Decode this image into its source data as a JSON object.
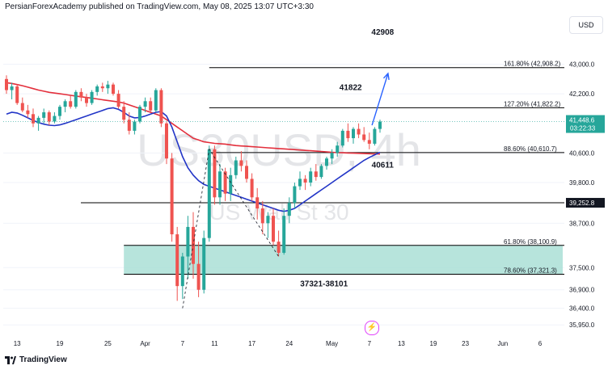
{
  "header": {
    "published_by": "PersianForexAcademy published on TradingView.com, May 08, 2025 13:07 UTC+3:30"
  },
  "currency_button": "USD",
  "watermark": {
    "symbol": "US30USD, 4h",
    "name": "US Wall St 30"
  },
  "footer": {
    "brand": "TradingView"
  },
  "colors": {
    "bull": "#26a69a",
    "bear": "#ef5350",
    "ma_fast": "#2235c7",
    "ma_slow": "#e32f3c",
    "zone": "#a5ddd3",
    "projection": "#2962ff",
    "price_tag": "#26a69a",
    "line": "#000000"
  },
  "chart_data": {
    "type": "line",
    "title": "US30USD, 4h",
    "ylabel": "USD",
    "ylim": [
      35780,
      44300
    ],
    "price_ticks": [
      "43,000.0",
      "42,200.0",
      "40,600.0",
      "39,800.0",
      "38,700.0",
      "37,500.0",
      "36,900.0",
      "36,400.0",
      "35,950.0"
    ],
    "price_tick_values": [
      43000,
      42200,
      40600,
      39800,
      38700,
      37500,
      36900,
      36400,
      35950
    ],
    "date_ticks": [
      "13",
      "19",
      "25",
      "Apr",
      "7",
      "11",
      "17",
      "24",
      "May",
      "7",
      "13",
      "19",
      "23",
      "Jun",
      "6"
    ],
    "date_tick_index": [
      2,
      10,
      19,
      26,
      33,
      39,
      46,
      53,
      61,
      68,
      74,
      80,
      86,
      93,
      100
    ],
    "last_price": {
      "value": "41,448.6",
      "countdown": "03:22:33",
      "y": 41448.6
    },
    "horizontal_line": {
      "value": 39252.8,
      "label": "39,252.8"
    },
    "fib_levels": [
      {
        "label": "161.80% (42,908.2)",
        "value": 42908.2,
        "x_from": 38
      },
      {
        "label": "127.20% (41,822.2)",
        "value": 41822.2,
        "x_from": 38
      },
      {
        "label": "88.60% (40,610.7)",
        "value": 40610.7,
        "x_from": 38
      },
      {
        "label": "61.80% (38,100.9)",
        "value": 38100.9,
        "x_from": 22
      },
      {
        "label": "78.60% (37,321.3)",
        "value": 37321.3,
        "x_from": 22
      }
    ],
    "annotations": [
      {
        "text": "42908",
        "x": 70.5,
        "y": 43800
      },
      {
        "text": "41822",
        "x": 64.5,
        "y": 42300
      },
      {
        "text": "40611",
        "x": 70.5,
        "y": 40200
      },
      {
        "text": "37321-38101",
        "x": 59.5,
        "y": 36990
      }
    ],
    "demand_zone": {
      "from": 37321.3,
      "to": 38100.9,
      "x_from": 22,
      "x_to": 100
    },
    "projection_arrow": {
      "from": [
        68.5,
        41350
      ],
      "to": [
        71.5,
        42750
      ]
    },
    "candles": [
      [
        42600,
        42700,
        42200,
        42300
      ],
      [
        42300,
        42500,
        42050,
        42400
      ],
      [
        42400,
        42450,
        41900,
        41950
      ],
      [
        41950,
        42100,
        41700,
        41750
      ],
      [
        41750,
        41900,
        41550,
        41650
      ],
      [
        41650,
        41800,
        41300,
        41400
      ],
      [
        41400,
        41600,
        41200,
        41550
      ],
      [
        41550,
        41800,
        41400,
        41700
      ],
      [
        41700,
        41750,
        41350,
        41450
      ],
      [
        41450,
        41700,
        41400,
        41600
      ],
      [
        41600,
        41900,
        41500,
        41850
      ],
      [
        41850,
        42050,
        41700,
        42000
      ],
      [
        42000,
        42150,
        41800,
        41850
      ],
      [
        41850,
        42300,
        41800,
        42250
      ],
      [
        42250,
        42350,
        42000,
        42100
      ],
      [
        42100,
        42200,
        41850,
        41950
      ],
      [
        41950,
        42300,
        41900,
        42250
      ],
      [
        42250,
        42450,
        42150,
        42400
      ],
      [
        42400,
        42500,
        42250,
        42350
      ],
      [
        42350,
        42550,
        42200,
        42450
      ],
      [
        42450,
        42500,
        42150,
        42200
      ],
      [
        42200,
        42300,
        41800,
        41850
      ],
      [
        41850,
        42000,
        41400,
        41500
      ],
      [
        41500,
        41700,
        41100,
        41200
      ],
      [
        41200,
        41500,
        41100,
        41450
      ],
      [
        41450,
        41900,
        41400,
        41850
      ],
      [
        41850,
        42100,
        41700,
        42000
      ],
      [
        42000,
        42100,
        41700,
        41750
      ],
      [
        41750,
        42350,
        41700,
        42300
      ],
      [
        42300,
        42350,
        41300,
        41400
      ],
      [
        41400,
        41450,
        40300,
        40450
      ],
      [
        40450,
        40600,
        38200,
        38400
      ],
      [
        38400,
        38600,
        36600,
        37000
      ],
      [
        37000,
        37900,
        36650,
        37800
      ],
      [
        37800,
        38900,
        37200,
        38600
      ],
      [
        38600,
        39000,
        37200,
        37600
      ],
      [
        37600,
        38200,
        36700,
        36900
      ],
      [
        36900,
        38500,
        36800,
        38300
      ],
      [
        38300,
        40800,
        38200,
        40700
      ],
      [
        40700,
        40800,
        39200,
        39400
      ],
      [
        39400,
        40300,
        39200,
        40100
      ],
      [
        40100,
        40200,
        39300,
        39500
      ],
      [
        39500,
        40200,
        39300,
        40000
      ],
      [
        40000,
        40500,
        39900,
        40400
      ],
      [
        40400,
        40650,
        40100,
        40250
      ],
      [
        40250,
        40400,
        39800,
        39900
      ],
      [
        39900,
        40050,
        39300,
        39400
      ],
      [
        39400,
        39650,
        38800,
        39100
      ],
      [
        39100,
        39300,
        38400,
        38700
      ],
      [
        38700,
        39000,
        38300,
        38900
      ],
      [
        38900,
        39100,
        38100,
        38200
      ],
      [
        38200,
        38500,
        37800,
        37900
      ],
      [
        37900,
        39100,
        37850,
        38900
      ],
      [
        38900,
        39400,
        38700,
        39250
      ],
      [
        39250,
        39800,
        39100,
        39700
      ],
      [
        39700,
        40100,
        39600,
        39900
      ],
      [
        39900,
        40000,
        39600,
        39800
      ],
      [
        39800,
        40200,
        39700,
        40100
      ],
      [
        40100,
        40300,
        39850,
        39950
      ],
      [
        39950,
        40300,
        39900,
        40250
      ],
      [
        40250,
        40500,
        40150,
        40450
      ],
      [
        40450,
        40700,
        40300,
        40600
      ],
      [
        40600,
        40900,
        40500,
        40800
      ],
      [
        40800,
        41250,
        40750,
        41200
      ],
      [
        41200,
        41400,
        40900,
        41000
      ],
      [
        41000,
        41300,
        40850,
        41250
      ],
      [
        41250,
        41400,
        41000,
        41100
      ],
      [
        41100,
        41300,
        40900,
        40950
      ],
      [
        40950,
        41150,
        40700,
        40850
      ],
      [
        40850,
        41300,
        40800,
        41250
      ],
      [
        41250,
        41500,
        41150,
        41448.6
      ]
    ],
    "ma_fast": [
      41650,
      41700,
      41680,
      41620,
      41550,
      41480,
      41420,
      41380,
      41350,
      41340,
      41360,
      41400,
      41450,
      41500,
      41550,
      41600,
      41650,
      41700,
      41750,
      41800,
      41820,
      41780,
      41700,
      41600,
      41550,
      41560,
      41600,
      41650,
      41700,
      41720,
      41600,
      41300,
      40900,
      40500,
      40200,
      40000,
      39850,
      39750,
      39700,
      39650,
      39600,
      39550,
      39500,
      39450,
      39400,
      39350,
      39300,
      39250,
      39200,
      39150,
      39100,
      39050,
      39020,
      39050,
      39100,
      39200,
      39300,
      39400,
      39500,
      39600,
      39700,
      39800,
      39900,
      40000,
      40100,
      40200,
      40300,
      40400,
      40480,
      40550,
      40620
    ],
    "ma_slow": [
      42500,
      42480,
      42450,
      42420,
      42380,
      42340,
      42300,
      42270,
      42240,
      42220,
      42200,
      42180,
      42160,
      42140,
      42120,
      42100,
      42080,
      42060,
      42040,
      42020,
      42000,
      41980,
      41950,
      41900,
      41850,
      41800,
      41750,
      41700,
      41650,
      41600,
      41500,
      41400,
      41300,
      41200,
      41100,
      41000,
      40950,
      40900,
      40880,
      40860,
      40850,
      40840,
      40820,
      40800,
      40790,
      40780,
      40770,
      40760,
      40750,
      40740,
      40730,
      40720,
      40710,
      40700,
      40690,
      40680,
      40670,
      40660,
      40650,
      40640,
      40630,
      40620,
      40610,
      40605,
      40600,
      40595,
      40590,
      40585,
      40580,
      40575,
      40570
    ],
    "zigzag": [
      [
        33,
        36400
      ],
      [
        38,
        40700
      ],
      [
        51,
        37800
      ]
    ]
  }
}
